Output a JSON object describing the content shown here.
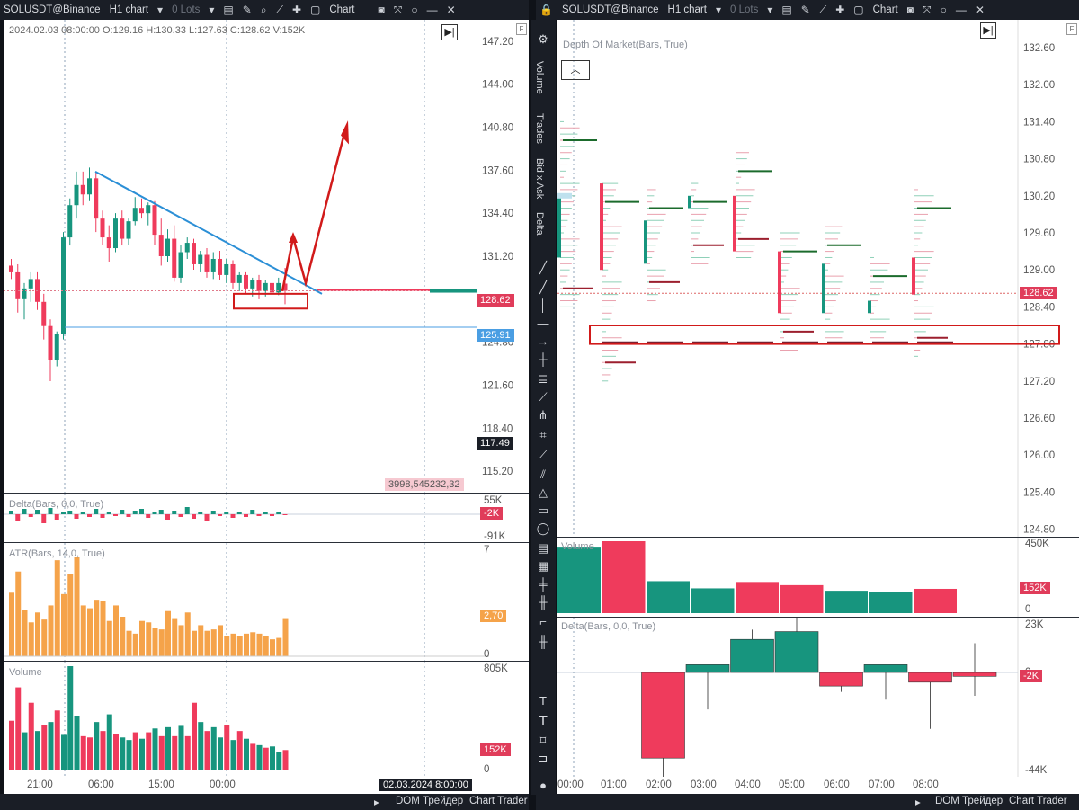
{
  "left": {
    "header": {
      "symbol": "SOLUSDT@Binance",
      "timeframe": "H1 chart",
      "lots": "0 Lots",
      "chart_button": "Chart"
    },
    "ohlc_info": "2024.02.03 08:00:00 O:129.16 H:130.33 L:127.63 C:128.62 V:152K",
    "price_ticks": [
      "147.20",
      "144.00",
      "140.80",
      "137.60",
      "134.40",
      "131.20",
      "128.00",
      "124.80",
      "121.60",
      "118.40",
      "115.20"
    ],
    "price_label_current": "128.62",
    "price_label_line": "125.91",
    "price_label_low": "117.49",
    "counter": "3998,545232,32",
    "delta_title": "Delta(Bars, 0,0, True)",
    "delta_ticks": [
      "55K",
      "-91K"
    ],
    "delta_label": "-2K",
    "atr_title": "ATR(Bars, 14,0, True)",
    "atr_ticks": [
      "7",
      "0"
    ],
    "atr_label": "2,70",
    "volume_title": "Volume",
    "volume_ticks": [
      "805K",
      "0"
    ],
    "volume_label": "152K",
    "time_ticks": [
      "21:00",
      "06:00",
      "15:00",
      "00:00"
    ],
    "date_label": "02.03.2024 8:00:00",
    "bottom": {
      "dom": "DOM Трейдер",
      "trader": "Chart Trader"
    }
  },
  "right": {
    "header": {
      "symbol": "SOLUSDT@Binance",
      "timeframe": "H1 chart",
      "lots": "0 Lots",
      "chart_button": "Chart"
    },
    "dom_title": "Depth Of Market(Bars, True)",
    "price_ticks": [
      "132.60",
      "132.00",
      "131.40",
      "130.80",
      "130.20",
      "129.60",
      "129.00",
      "128.40",
      "127.80",
      "127.20",
      "126.60",
      "126.00",
      "125.40",
      "124.80"
    ],
    "price_label": "128.62",
    "volume_title": "Volume",
    "volume_ticks": [
      "450K",
      "0"
    ],
    "volume_label": "152K",
    "delta_title": "Delta(Bars, 0,0, True)",
    "delta_ticks": [
      "23K",
      "0",
      "-44K"
    ],
    "delta_label": "-2K",
    "time_ticks": [
      "00:00",
      "01:00",
      "02:00",
      "03:00",
      "04:00",
      "05:00",
      "06:00",
      "07:00",
      "08:00"
    ],
    "bottom": {
      "dom": "DOM Трейдер",
      "trader": "Chart Trader"
    }
  },
  "toolbar": {
    "vertical_tabs": [
      "Volume",
      "Trades",
      "Bid x Ask",
      "Delta"
    ],
    "tools": [
      "line-icon",
      "ray-icon",
      "horizontal-line-icon",
      "arrow-icon",
      "crosshair-icon",
      "fib-icon",
      "trend-icon",
      "pitchfork-icon",
      "ruler-icon",
      "channel-icon",
      "triangle-icon",
      "rectangle-icon",
      "ellipse-icon",
      "volume-profile-icon",
      "text-icon",
      "label-icon",
      "comment-icon"
    ]
  },
  "colors": {
    "bull": "#17957e",
    "bear": "#ef3b5c",
    "atr": "#f5a34a",
    "trendline": "#2b8fd6",
    "annotation": "#d11a1a",
    "level": "#4a9ee3"
  },
  "chart_data": [
    {
      "type": "candlestick",
      "title": "SOLUSDT@Binance H1 chart",
      "ylim": [
        113.6,
        148.8
      ],
      "x_ticks": [
        "21:00",
        "06:00",
        "15:00",
        "00:00"
      ],
      "candles_ohlc": [
        [
          130.5,
          131.0,
          129.5,
          130.0
        ],
        [
          130.0,
          130.6,
          127.0,
          128.0
        ],
        [
          128.0,
          129.2,
          126.5,
          128.8
        ],
        [
          128.8,
          130.0,
          127.8,
          129.5
        ],
        [
          129.5,
          130.0,
          127.2,
          127.8
        ],
        [
          127.8,
          128.4,
          125.0,
          126.0
        ],
        [
          126.0,
          126.5,
          121.9,
          123.5
        ],
        [
          123.5,
          125.6,
          123.0,
          125.4
        ],
        [
          125.4,
          133.0,
          125.0,
          132.6
        ],
        [
          132.6,
          135.5,
          132.0,
          135.0
        ],
        [
          135.0,
          137.5,
          134.0,
          136.5
        ],
        [
          136.5,
          137.5,
          135.0,
          135.8
        ],
        [
          135.8,
          137.8,
          135.3,
          137.0
        ],
        [
          137.0,
          137.5,
          133.0,
          134.0
        ],
        [
          134.0,
          134.6,
          132.0,
          132.6
        ],
        [
          132.6,
          133.5,
          130.8,
          131.8
        ],
        [
          131.8,
          134.4,
          131.5,
          134.0
        ],
        [
          134.0,
          134.6,
          132.0,
          132.5
        ],
        [
          132.5,
          134.0,
          132.0,
          133.8
        ],
        [
          133.8,
          135.6,
          133.5,
          134.8
        ],
        [
          134.8,
          135.5,
          134.0,
          134.4
        ],
        [
          134.4,
          135.2,
          133.5,
          135.0
        ],
        [
          135.0,
          135.3,
          132.0,
          132.8
        ],
        [
          132.8,
          134.0,
          130.5,
          131.2
        ],
        [
          131.2,
          133.2,
          130.8,
          132.5
        ],
        [
          132.5,
          133.5,
          129.3,
          129.6
        ],
        [
          129.6,
          132.0,
          129.2,
          131.5
        ],
        [
          131.5,
          132.6,
          131.0,
          132.2
        ],
        [
          132.2,
          132.5,
          130.2,
          130.6
        ],
        [
          130.6,
          131.6,
          130.0,
          131.3
        ],
        [
          131.3,
          131.8,
          129.6,
          130.0
        ],
        [
          130.0,
          131.5,
          129.5,
          131.0
        ],
        [
          131.0,
          131.6,
          129.4,
          129.8
        ],
        [
          129.8,
          131.0,
          129.2,
          130.6
        ],
        [
          130.6,
          130.9,
          128.8,
          129.2
        ],
        [
          129.2,
          130.0,
          128.6,
          129.8
        ],
        [
          129.8,
          130.0,
          128.4,
          128.8
        ],
        [
          128.8,
          129.6,
          128.2,
          129.4
        ],
        [
          129.4,
          129.8,
          128.0,
          128.6
        ],
        [
          128.6,
          129.4,
          128.2,
          129.2
        ],
        [
          129.2,
          129.6,
          128.0,
          128.5
        ],
        [
          128.5,
          129.6,
          128.3,
          129.2
        ],
        [
          129.16,
          130.33,
          127.63,
          128.62
        ]
      ],
      "horizontal_levels": [
        125.91,
        128.62
      ],
      "trendline": [
        [
          137.5,
          128.4
        ]
      ]
    },
    {
      "type": "bar",
      "title": "Volume",
      "categories": [
        "00:00",
        "01:00",
        "02:00",
        "03:00",
        "04:00",
        "05:00",
        "06:00",
        "07:00",
        "08:00"
      ],
      "values": [
        410,
        450,
        200,
        155,
        195,
        175,
        140,
        130,
        152
      ],
      "ylim": [
        0,
        450
      ]
    },
    {
      "type": "bar",
      "title": "Delta(Bars, 0,0, True)",
      "categories": [
        "00:00",
        "01:00",
        "02:00",
        "03:00",
        "04:00",
        "05:00",
        "06:00",
        "07:00",
        "08:00"
      ],
      "values": [
        0,
        -44,
        4,
        17,
        21,
        -7,
        4,
        -5,
        -2
      ],
      "ylim": [
        -44,
        23
      ]
    }
  ]
}
